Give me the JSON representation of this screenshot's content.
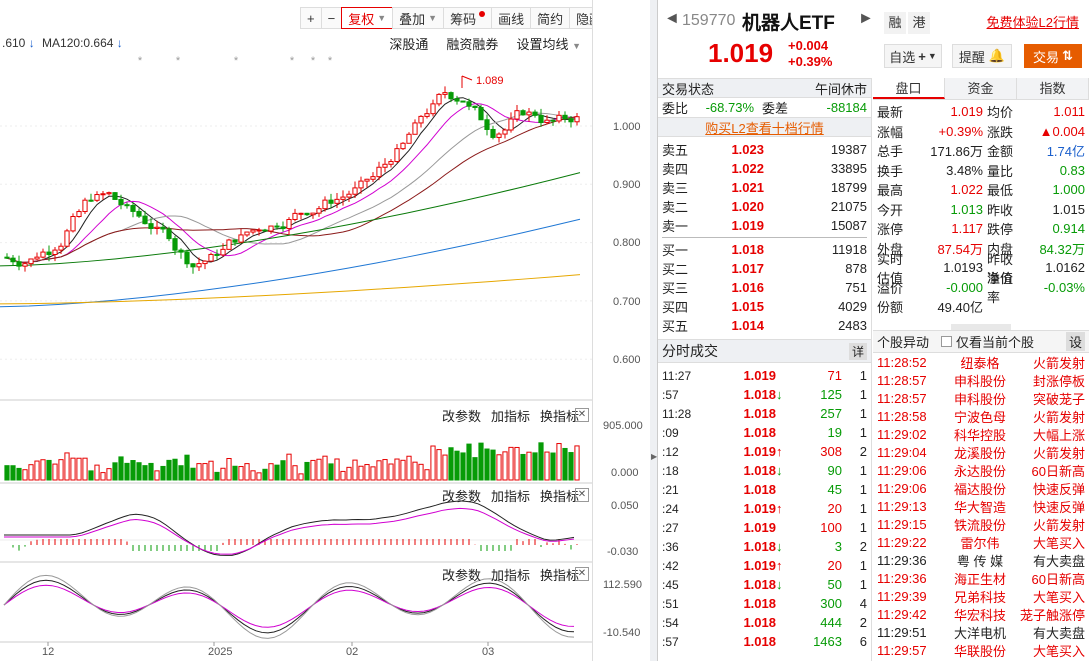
{
  "toolbar": {
    "items": [
      "+",
      "−",
      "复权",
      "叠加",
      "筹码",
      "画线",
      "简约",
      "隐藏"
    ],
    "nav_glyph": "►"
  },
  "ma_legend": {
    "prefix": ".610",
    "ma120": "MA120:0.664",
    "dn": "↓"
  },
  "chart_links": {
    "shen": "深股通",
    "margin": "融资融券",
    "setup": "设置均线"
  },
  "sub_links": {
    "params": "改参数",
    "add": "加指标",
    "switch": "换指标",
    "close": "✕"
  },
  "chart_data": {
    "type": "candlestick",
    "title": "",
    "xlabel": "",
    "ylabel": "",
    "main": {
      "y_ticks": [
        "1.000",
        "0.900",
        "0.800",
        "0.700",
        "0.600"
      ],
      "ylim": [
        0.53,
        1.12
      ],
      "high_label": "1.089",
      "high_value": 1.089
    },
    "volume": {
      "y_ticks": [
        "905.000",
        "0.000"
      ]
    },
    "macd": {
      "y_ticks": [
        "0.050",
        "-0.030"
      ]
    },
    "kdj": {
      "y_ticks": [
        "112.590",
        "-10.540"
      ]
    },
    "x_ticks": [
      "12",
      "2025",
      "02",
      "03"
    ],
    "colors": {
      "up": "#e60000",
      "down": "#079b07",
      "ma5": "#222222",
      "ma10": "#d100d1",
      "ma20": "#999999",
      "ma30": "#8b1a1a",
      "ma60": "#0a7a0a",
      "ma120": "#1f77d4",
      "ma250": "#e6a700"
    }
  },
  "header": {
    "code": "159770",
    "name": "机器人ETF",
    "price": "1.019",
    "change": "+0.004",
    "change_pct": "+0.39%",
    "badge1": "融",
    "badge2": "港",
    "free_l2": "免费体验L2行情",
    "watch_btn": "自选",
    "alert_btn": "提醒",
    "trade_btn": "交易",
    "prev": "◄",
    "next": "►"
  },
  "status": {
    "label": "交易状态",
    "value": "午间休市"
  },
  "ratio": {
    "wb_label": "委比",
    "wb_value": "-68.73%",
    "wc_label": "委差",
    "wc_value": "-88184"
  },
  "l2_link": "购买L2查看十档行情",
  "asks": [
    {
      "name": "卖五",
      "price": "1.023",
      "vol": "19387"
    },
    {
      "name": "卖四",
      "price": "1.022",
      "vol": "33895"
    },
    {
      "name": "卖三",
      "price": "1.021",
      "vol": "18799"
    },
    {
      "name": "卖二",
      "price": "1.020",
      "vol": "21075"
    },
    {
      "name": "卖一",
      "price": "1.019",
      "vol": "15087"
    }
  ],
  "bids": [
    {
      "name": "买一",
      "price": "1.018",
      "vol": "11918"
    },
    {
      "name": "买二",
      "price": "1.017",
      "vol": "878"
    },
    {
      "name": "买三",
      "price": "1.016",
      "vol": "751"
    },
    {
      "name": "买四",
      "price": "1.015",
      "vol": "4029"
    },
    {
      "name": "买五",
      "price": "1.014",
      "vol": "2483"
    }
  ],
  "ticks_title": "分时成交",
  "ticks_more": "详",
  "ticks": [
    {
      "time": "11:27",
      "price": "1.019",
      "arrow": "",
      "vol": "71",
      "cnt": "1",
      "pc": "red",
      "vc": "red"
    },
    {
      "time": ":57",
      "price": "1.018",
      "arrow": "↓",
      "vol": "125",
      "cnt": "1",
      "pc": "red",
      "vc": "green"
    },
    {
      "time": "11:28",
      "price": "1.018",
      "arrow": "",
      "vol": "257",
      "cnt": "1",
      "pc": "red",
      "vc": "green"
    },
    {
      "time": ":09",
      "price": "1.018",
      "arrow": "",
      "vol": "19",
      "cnt": "1",
      "pc": "red",
      "vc": "green"
    },
    {
      "time": ":12",
      "price": "1.019",
      "arrow": "↑",
      "vol": "308",
      "cnt": "2",
      "pc": "red",
      "vc": "red"
    },
    {
      "time": ":18",
      "price": "1.018",
      "arrow": "↓",
      "vol": "90",
      "cnt": "1",
      "pc": "red",
      "vc": "green"
    },
    {
      "time": ":21",
      "price": "1.018",
      "arrow": "",
      "vol": "45",
      "cnt": "1",
      "pc": "red",
      "vc": "green"
    },
    {
      "time": ":24",
      "price": "1.019",
      "arrow": "↑",
      "vol": "20",
      "cnt": "1",
      "pc": "red",
      "vc": "red"
    },
    {
      "time": ":27",
      "price": "1.019",
      "arrow": "",
      "vol": "100",
      "cnt": "1",
      "pc": "red",
      "vc": "red"
    },
    {
      "time": ":36",
      "price": "1.018",
      "arrow": "↓",
      "vol": "3",
      "cnt": "2",
      "pc": "red",
      "vc": "green"
    },
    {
      "time": ":42",
      "price": "1.019",
      "arrow": "↑",
      "vol": "20",
      "cnt": "1",
      "pc": "red",
      "vc": "red"
    },
    {
      "time": ":45",
      "price": "1.018",
      "arrow": "↓",
      "vol": "50",
      "cnt": "1",
      "pc": "red",
      "vc": "green"
    },
    {
      "time": ":51",
      "price": "1.018",
      "arrow": "",
      "vol": "300",
      "cnt": "4",
      "pc": "red",
      "vc": "green"
    },
    {
      "time": ":54",
      "price": "1.018",
      "arrow": "",
      "vol": "444",
      "cnt": "2",
      "pc": "red",
      "vc": "green"
    },
    {
      "time": ":57",
      "price": "1.018",
      "arrow": "",
      "vol": "1463",
      "cnt": "6",
      "pc": "red",
      "vc": "green"
    }
  ],
  "tabs": [
    "盘口",
    "资金",
    "指数"
  ],
  "quote": [
    {
      "k1": "最新",
      "v1": "1.019",
      "c1": "red",
      "k2": "均价",
      "v2": "1.011",
      "c2": "red"
    },
    {
      "k1": "涨幅",
      "v1": "+0.39%",
      "c1": "red",
      "k2": "涨跌",
      "v2": "▲0.004",
      "c2": "red"
    },
    {
      "k1": "总手",
      "v1": "171.86万",
      "c1": "",
      "k2": "金额",
      "v2": "1.74亿",
      "c2": "blue"
    },
    {
      "k1": "换手",
      "v1": "3.48%",
      "c1": "",
      "k2": "量比",
      "v2": "0.83",
      "c2": "green"
    },
    {
      "k1": "最高",
      "v1": "1.022",
      "c1": "red",
      "k2": "最低",
      "v2": "1.000",
      "c2": "green"
    },
    {
      "k1": "今开",
      "v1": "1.013",
      "c1": "green",
      "k2": "昨收",
      "v2": "1.015",
      "c2": ""
    },
    {
      "k1": "涨停",
      "v1": "1.117",
      "c1": "red",
      "k2": "跌停",
      "v2": "0.914",
      "c2": "green"
    },
    {
      "k1": "外盘",
      "v1": "87.54万",
      "c1": "red",
      "k2": "内盘",
      "v2": "84.32万",
      "c2": "green"
    },
    {
      "k1": "实时估值",
      "v1": "1.0193",
      "c1": "",
      "k2": "昨收净值",
      "v2": "1.0162",
      "c2": ""
    },
    {
      "k1": "溢价",
      "v1": "-0.000",
      "c1": "green",
      "k2": "溢价率",
      "v2": "-0.03%",
      "c2": "green"
    },
    {
      "k1": "份额",
      "v1": "49.40亿",
      "c1": "",
      "k2": "",
      "v2": "",
      "c2": ""
    }
  ],
  "alerts_title": "个股异动",
  "alerts_check": "仅看当前个股",
  "alerts_set": "设",
  "alerts": [
    {
      "time": "11:28:52",
      "name": "纽泰格",
      "evt": "火箭发射",
      "c": "red"
    },
    {
      "time": "11:28:57",
      "name": "申科股份",
      "evt": "封涨停板",
      "c": "red"
    },
    {
      "time": "11:28:57",
      "name": "申科股份",
      "evt": "突破茏子",
      "c": "red"
    },
    {
      "time": "11:28:58",
      "name": "宁波色母",
      "evt": "火箭发射",
      "c": "red"
    },
    {
      "time": "11:29:02",
      "name": "科华控股",
      "evt": "大幅上涨",
      "c": "red"
    },
    {
      "time": "11:29:04",
      "name": "龙溪股份",
      "evt": "火箭发射",
      "c": "red"
    },
    {
      "time": "11:29:06",
      "name": "永达股份",
      "evt": "60日新高",
      "c": "red"
    },
    {
      "time": "11:29:06",
      "name": "福达股份",
      "evt": "快速反弹",
      "c": "red"
    },
    {
      "time": "11:29:13",
      "name": "华大智造",
      "evt": "快速反弹",
      "c": "red"
    },
    {
      "time": "11:29:15",
      "name": "铁流股份",
      "evt": "火箭发射",
      "c": "red"
    },
    {
      "time": "11:29:22",
      "name": "雷尔伟",
      "evt": "大笔买入",
      "c": "red"
    },
    {
      "time": "11:29:36",
      "name": "粤 传 媒",
      "evt": "有大卖盘",
      "c": "black"
    },
    {
      "time": "11:29:36",
      "name": "海正生材",
      "evt": "60日新高",
      "c": "red"
    },
    {
      "time": "11:29:39",
      "name": "兄弟科技",
      "evt": "大笔买入",
      "c": "red"
    },
    {
      "time": "11:29:42",
      "name": "华宏科技",
      "evt": "茏子触涨停",
      "c": "red"
    },
    {
      "time": "11:29:51",
      "name": "大洋电机",
      "evt": "有大卖盘",
      "c": "black"
    },
    {
      "time": "11:29:57",
      "name": "华联股份",
      "evt": "大笔买入",
      "c": "red"
    }
  ]
}
